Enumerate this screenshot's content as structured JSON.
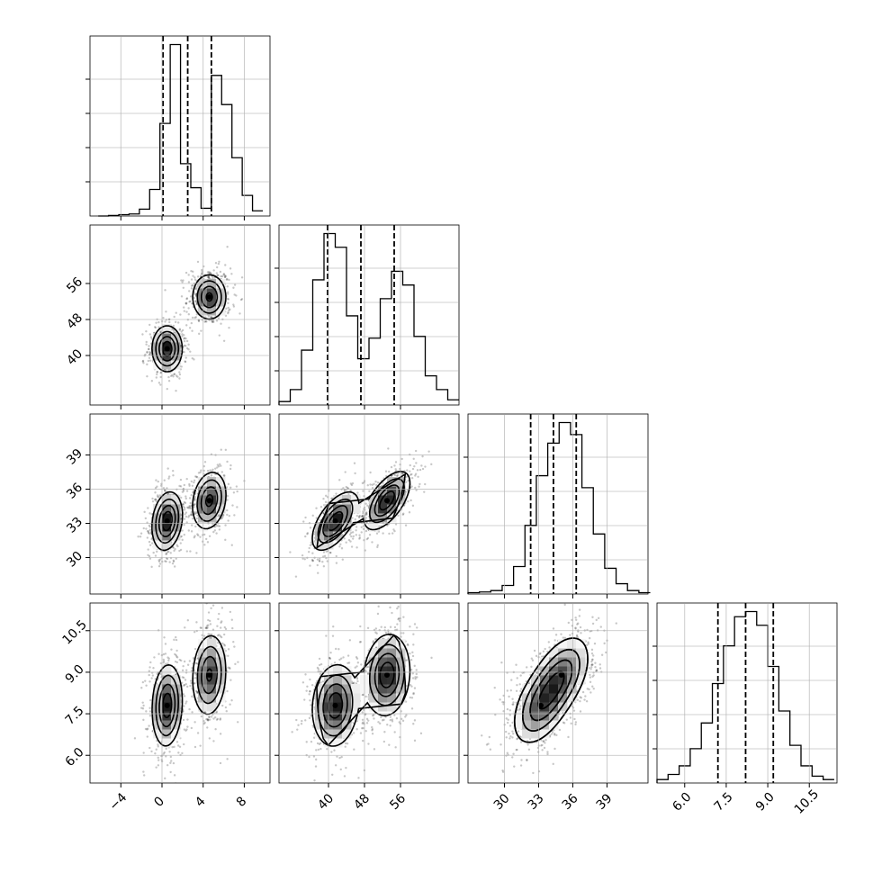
{
  "chart_data": {
    "type": "corner",
    "parameters": [
      {
        "range": [
          -7,
          10.5
        ],
        "ticks": [
          -4,
          0,
          4,
          8
        ],
        "tick_labels": [
          "−4",
          "0",
          "4",
          "8"
        ],
        "quantiles": [
          0.1,
          2.5,
          4.8
        ],
        "hist_bins": [
          -6.2,
          -5.2,
          -4.2,
          -3.2,
          -2.2,
          -1.2,
          -0.2,
          0.8,
          1.8,
          2.8,
          3.8,
          4.8,
          5.8,
          6.8,
          7.8,
          8.8,
          9.8
        ],
        "hist_counts": [
          0.0,
          0.003,
          0.008,
          0.012,
          0.04,
          0.155,
          0.54,
          1.0,
          0.305,
          0.165,
          0.045,
          0.82,
          0.65,
          0.34,
          0.12,
          0.03
        ]
      },
      {
        "range": [
          29,
          69
        ],
        "ticks": [
          40,
          48,
          56
        ],
        "tick_labels": [
          "40",
          "48",
          "56"
        ],
        "quantiles": [
          39.8,
          47.2,
          54.6
        ],
        "hist_bins": [
          29,
          31.5,
          34,
          36.5,
          39,
          41.5,
          44,
          46.5,
          49,
          51.5,
          54,
          56.5,
          59,
          61.5,
          64,
          66.5,
          69
        ],
        "hist_counts": [
          0.02,
          0.09,
          0.32,
          0.73,
          1.0,
          0.92,
          0.52,
          0.27,
          0.39,
          0.62,
          0.78,
          0.7,
          0.4,
          0.17,
          0.09,
          0.03
        ]
      },
      {
        "range": [
          26.8,
          42.6
        ],
        "ticks": [
          30,
          33,
          36,
          39
        ],
        "tick_labels": [
          "30",
          "33",
          "36",
          "39"
        ],
        "quantiles": [
          32.3,
          34.3,
          36.3
        ],
        "hist_bins": [
          26.8,
          27.8,
          28.8,
          29.8,
          30.8,
          31.8,
          32.8,
          33.8,
          34.8,
          35.8,
          36.8,
          37.8,
          38.8,
          39.8,
          40.8,
          41.8,
          42.8
        ],
        "hist_counts": [
          0.008,
          0.012,
          0.02,
          0.05,
          0.16,
          0.4,
          0.69,
          0.88,
          1.0,
          0.93,
          0.62,
          0.35,
          0.15,
          0.06,
          0.02,
          0.008
        ]
      },
      {
        "range": [
          5.0,
          11.5
        ],
        "ticks": [
          6.0,
          7.5,
          9.0,
          10.5
        ],
        "tick_labels": [
          "6.0",
          "7.5",
          "9.0",
          "10.5"
        ],
        "quantiles": [
          7.2,
          8.2,
          9.2
        ],
        "hist_bins": [
          5.0,
          5.4,
          5.8,
          6.2,
          6.6,
          7.0,
          7.4,
          7.8,
          8.2,
          8.6,
          9.0,
          9.4,
          9.8,
          10.2,
          10.6,
          11.0,
          11.4
        ],
        "hist_counts": [
          0.02,
          0.05,
          0.1,
          0.2,
          0.35,
          0.58,
          0.8,
          0.97,
          1.0,
          0.92,
          0.68,
          0.42,
          0.22,
          0.1,
          0.04,
          0.02
        ]
      }
    ],
    "hist_ylim_factor": 1.05,
    "grid": true,
    "modes": [
      {
        "weight": 0.5,
        "mean": [
          0.5,
          41.5,
          33.2,
          7.8
        ],
        "sd": [
          0.75,
          2.6,
          1.3,
          0.75
        ]
      },
      {
        "weight": 0.5,
        "mean": [
          4.6,
          53.0,
          35.0,
          8.9
        ],
        "sd": [
          0.85,
          2.6,
          1.3,
          0.75
        ]
      }
    ],
    "within_mode_correlations": [
      {
        "i": 0,
        "j": 1,
        "r": 0.0
      },
      {
        "i": 0,
        "j": 2,
        "r": 0.2
      },
      {
        "i": 0,
        "j": 3,
        "r": 0.1
      },
      {
        "i": 1,
        "j": 2,
        "r": 0.6
      },
      {
        "i": 1,
        "j": 3,
        "r": 0.1
      },
      {
        "i": 2,
        "j": 3,
        "r": 0.45
      }
    ]
  }
}
